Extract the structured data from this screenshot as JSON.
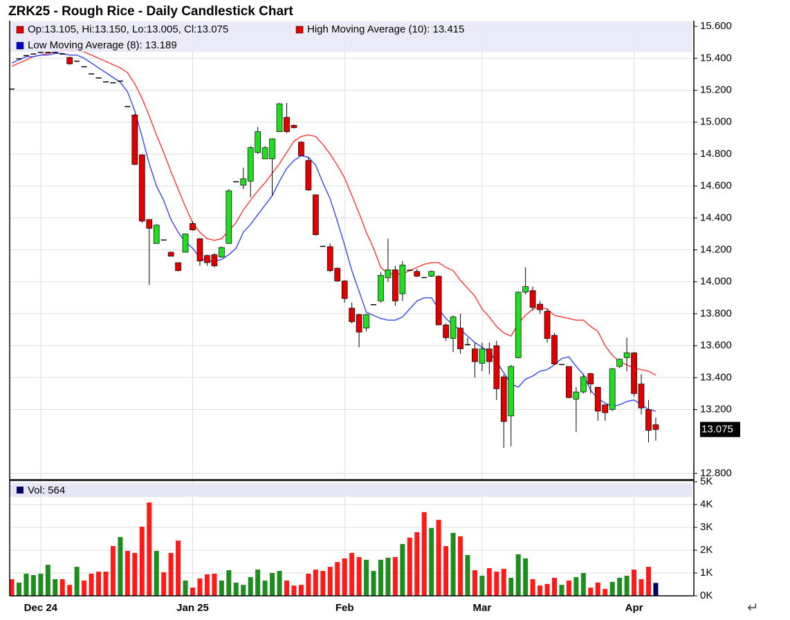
{
  "chart_data": {
    "type": "candlestick",
    "title": "ZRK25 - Rough Rice - Daily Candlestick Chart",
    "ohlc_label": "Op:13.105, Hi:13.150, Lo:13.005, Cl:13.075",
    "categories": [
      null,
      null,
      null,
      null,
      "Dec 24",
      null,
      null,
      null,
      null,
      null,
      null,
      null,
      null,
      null,
      null,
      null,
      null,
      null,
      null,
      null,
      null,
      null,
      null,
      null,
      null,
      "Jan 25",
      null,
      null,
      null,
      null,
      null,
      null,
      null,
      null,
      null,
      null,
      null,
      null,
      null,
      null,
      null,
      null,
      null,
      null,
      null,
      null,
      "Feb",
      null,
      null,
      null,
      null,
      null,
      null,
      null,
      null,
      null,
      null,
      null,
      null,
      null,
      null,
      null,
      null,
      null,
      null,
      "Mar",
      null,
      null,
      null,
      null,
      null,
      null,
      null,
      null,
      null,
      null,
      null,
      null,
      null,
      null,
      null,
      null,
      null,
      null,
      null,
      null,
      "Apr",
      null,
      null,
      null
    ],
    "open": [
      15.21,
      15.4,
      15.42,
      15.43,
      15.44,
      15.44,
      15.44,
      15.43,
      15.405,
      15.385,
      15.35,
      15.305,
      15.28,
      15.255,
      15.25,
      15.26,
      15.1,
      15.045,
      14.795,
      14.39,
      14.24,
      14.265,
      14.185,
      14.12,
      14.185,
      14.365,
      14.27,
      14.165,
      14.17,
      14.155,
      14.24,
      14.63,
      14.605,
      14.63,
      14.81,
      14.77,
      14.77,
      14.94,
      15.03,
      14.98,
      14.875,
      14.76,
      14.545,
      14.225,
      14.22,
      14.085,
      14.005,
      13.835,
      13.795,
      13.71,
      13.86,
      13.88,
      14.025,
      14.075,
      13.925,
      14.075,
      14.065,
      14.03,
      14.035,
      14.035,
      13.73,
      13.645,
      13.71,
      13.61,
      13.58,
      13.49,
      13.58,
      13.6,
      13.405,
      13.16,
      13.525,
      13.935,
      13.945,
      13.86,
      13.815,
      13.665,
      13.485,
      13.47,
      13.265,
      13.31,
      13.425,
      13.34,
      13.23,
      13.2,
      13.47,
      13.525,
      13.555,
      13.36,
      13.2,
      13.105
    ],
    "high": [
      15.21,
      15.4,
      15.42,
      15.43,
      15.44,
      15.44,
      15.44,
      15.43,
      15.41,
      15.385,
      15.35,
      15.305,
      15.28,
      15.255,
      15.25,
      15.26,
      15.1,
      15.05,
      14.8,
      14.39,
      14.36,
      14.265,
      14.19,
      14.12,
      14.3,
      14.38,
      14.27,
      14.17,
      14.18,
      14.22,
      14.58,
      14.63,
      14.715,
      14.85,
      14.97,
      14.85,
      14.9,
      15.12,
      15.12,
      14.985,
      14.88,
      14.78,
      14.545,
      14.225,
      14.24,
      14.09,
      14.01,
      13.87,
      13.8,
      13.8,
      13.86,
      14.06,
      14.27,
      14.1,
      14.13,
      14.075,
      14.08,
      14.03,
      14.07,
      14.04,
      13.74,
      13.79,
      13.8,
      13.65,
      13.62,
      13.62,
      13.62,
      13.63,
      13.42,
      13.48,
      13.94,
      14.09,
      13.97,
      13.88,
      13.83,
      13.68,
      13.485,
      13.47,
      13.34,
      13.42,
      13.43,
      13.34,
      13.23,
      13.46,
      13.52,
      13.65,
      13.56,
      13.42,
      13.26,
      13.15
    ],
    "low": [
      15.21,
      15.4,
      15.42,
      15.43,
      15.44,
      15.44,
      15.44,
      15.43,
      15.36,
      15.385,
      15.35,
      15.305,
      15.28,
      15.255,
      15.25,
      15.26,
      15.1,
      14.73,
      14.37,
      13.98,
      14.24,
      14.265,
      14.16,
      14.065,
      14.185,
      14.32,
      14.1,
      14.1,
      14.09,
      14.15,
      14.24,
      14.63,
      14.58,
      14.53,
      14.8,
      14.77,
      14.54,
      14.94,
      14.93,
      14.96,
      14.79,
      14.57,
      14.29,
      14.225,
      14.06,
      14.0,
      13.87,
      13.74,
      13.59,
      13.69,
      13.86,
      13.87,
      14.0,
      13.85,
      13.88,
      14.075,
      14.03,
      14.03,
      14.03,
      13.73,
      13.63,
      13.56,
      13.55,
      13.6,
      13.4,
      13.44,
      13.42,
      13.26,
      12.96,
      12.97,
      13.52,
      13.92,
      13.82,
      13.8,
      13.62,
      13.48,
      13.485,
      13.27,
      13.06,
      13.3,
      13.3,
      13.13,
      13.13,
      13.19,
      13.46,
      13.44,
      13.28,
      13.17,
      12.995,
      13.005
    ],
    "close": [
      15.21,
      15.4,
      15.42,
      15.43,
      15.44,
      15.44,
      15.44,
      15.43,
      15.365,
      15.385,
      15.35,
      15.305,
      15.28,
      15.255,
      15.25,
      15.26,
      15.1,
      14.735,
      14.38,
      14.335,
      14.355,
      14.265,
      14.16,
      14.07,
      14.3,
      14.325,
      14.13,
      14.12,
      14.1,
      14.215,
      14.57,
      14.63,
      14.645,
      14.84,
      14.94,
      14.84,
      14.895,
      15.115,
      14.94,
      14.965,
      14.79,
      14.575,
      14.295,
      14.225,
      14.07,
      14.005,
      13.895,
      13.75,
      13.685,
      13.795,
      13.86,
      14.04,
      14.075,
      13.88,
      14.105,
      14.075,
      14.035,
      14.03,
      14.065,
      13.73,
      13.65,
      13.78,
      13.58,
      13.61,
      13.5,
      13.58,
      13.5,
      13.33,
      13.125,
      13.47,
      13.935,
      13.97,
      13.84,
      13.825,
      13.645,
      13.485,
      13.485,
      13.275,
      13.31,
      13.405,
      13.36,
      13.19,
      13.18,
      13.455,
      13.515,
      13.555,
      13.3,
      13.21,
      13.07,
      13.075
    ],
    "up_color": "#22dd22",
    "down_color": "#e00000",
    "series": [
      {
        "name": "High Moving Average (10): 13.415",
        "color": "#ff3333",
        "values": [
          15.35,
          15.37,
          15.39,
          15.41,
          15.42,
          15.43,
          15.44,
          15.45,
          15.45,
          15.45,
          15.44,
          15.42,
          15.4,
          15.38,
          15.36,
          15.34,
          15.31,
          15.24,
          15.15,
          15.04,
          14.92,
          14.81,
          14.69,
          14.58,
          14.47,
          14.37,
          14.31,
          14.27,
          14.26,
          14.27,
          14.32,
          14.37,
          14.45,
          14.51,
          14.57,
          14.62,
          14.68,
          14.74,
          14.81,
          14.88,
          14.91,
          14.92,
          14.91,
          14.86,
          14.8,
          14.73,
          14.65,
          14.54,
          14.43,
          14.31,
          14.21,
          14.09,
          14.05,
          14.05,
          14.05,
          14.07,
          14.09,
          14.11,
          14.12,
          14.12,
          14.09,
          14.07,
          14.01,
          13.96,
          13.91,
          13.83,
          13.78,
          13.72,
          13.68,
          13.66,
          13.74,
          13.79,
          13.83,
          13.84,
          13.83,
          13.79,
          13.78,
          13.77,
          13.76,
          13.76,
          13.72,
          13.69,
          13.6,
          13.54,
          13.5,
          13.48,
          13.46,
          13.45,
          13.44,
          13.415
        ]
      },
      {
        "name": "Low Moving Average (8): 13.189",
        "color": "#3344ee",
        "values": [
          15.37,
          15.39,
          15.41,
          15.41,
          15.42,
          15.42,
          15.43,
          15.43,
          15.42,
          15.42,
          15.4,
          15.37,
          15.34,
          15.31,
          15.28,
          15.25,
          15.19,
          15.07,
          14.91,
          14.74,
          14.6,
          14.51,
          14.39,
          14.31,
          14.25,
          14.21,
          14.15,
          14.13,
          14.13,
          14.14,
          14.17,
          14.21,
          14.31,
          14.36,
          14.42,
          14.48,
          14.54,
          14.63,
          14.71,
          14.76,
          14.79,
          14.78,
          14.73,
          14.62,
          14.52,
          14.38,
          14.23,
          14.07,
          13.94,
          13.81,
          13.79,
          13.77,
          13.76,
          13.76,
          13.78,
          13.83,
          13.88,
          13.9,
          13.9,
          13.83,
          13.77,
          13.73,
          13.7,
          13.66,
          13.62,
          13.59,
          13.56,
          13.5,
          13.43,
          13.36,
          13.34,
          13.39,
          13.41,
          13.44,
          13.45,
          13.48,
          13.52,
          13.53,
          13.47,
          13.42,
          13.32,
          13.27,
          13.24,
          13.22,
          13.23,
          13.25,
          13.26,
          13.23,
          13.2,
          13.189
        ]
      }
    ],
    "ylim": [
      12.765,
      15.635
    ],
    "yticks": [
      {
        "value": 15.6,
        "label": "15.600"
      },
      {
        "value": 15.4,
        "label": "15.400"
      },
      {
        "value": 15.2,
        "label": "15.200"
      },
      {
        "value": 15.0,
        "label": "15.000"
      },
      {
        "value": 14.8,
        "label": "14.800"
      },
      {
        "value": 14.6,
        "label": "14.600"
      },
      {
        "value": 14.4,
        "label": "14.400"
      },
      {
        "value": 14.2,
        "label": "14.200"
      },
      {
        "value": 14.0,
        "label": "14.000"
      },
      {
        "value": 13.8,
        "label": "13.800"
      },
      {
        "value": 13.6,
        "label": "13.600"
      },
      {
        "value": 13.4,
        "label": "13.400"
      },
      {
        "value": 13.2,
        "label": "13.200"
      },
      {
        "value": 12.8,
        "label": "12.800"
      }
    ],
    "last_price": 13.075,
    "grid": true,
    "volume": {
      "name": "Vol: 564",
      "up_color": "#1e8c1e",
      "down_color": "#ff1a1a",
      "last_color": "#000066",
      "values": [
        730,
        580,
        970,
        910,
        970,
        1360,
        730,
        730,
        480,
        1270,
        670,
        970,
        1060,
        1060,
        2180,
        2580,
        1970,
        1880,
        3030,
        4090,
        1970,
        1030,
        1880,
        2420,
        670,
        360,
        760,
        940,
        970,
        670,
        1120,
        580,
        480,
        820,
        1150,
        670,
        1000,
        1090,
        670,
        450,
        480,
        970,
        1150,
        1090,
        1270,
        1480,
        1640,
        1880,
        1700,
        1580,
        1090,
        1580,
        1670,
        1700,
        2270,
        2550,
        2790,
        3670,
        2970,
        3330,
        2180,
        2760,
        2610,
        1790,
        1120,
        880,
        1210,
        1060,
        1180,
        790,
        1820,
        1640,
        730,
        450,
        520,
        790,
        480,
        670,
        820,
        1000,
        360,
        580,
        300,
        610,
        790,
        880,
        1150,
        730,
        1270,
        564
      ],
      "ylim": [
        0,
        5000
      ],
      "yticks": [
        {
          "value": 0,
          "label": "0K"
        },
        {
          "value": 1000,
          "label": "1K"
        },
        {
          "value": 2000,
          "label": "2K"
        },
        {
          "value": 3000,
          "label": "3K"
        },
        {
          "value": 4000,
          "label": "4K"
        },
        {
          "value": 5000,
          "label": "5K"
        }
      ]
    },
    "corner_symbol": "↵"
  }
}
